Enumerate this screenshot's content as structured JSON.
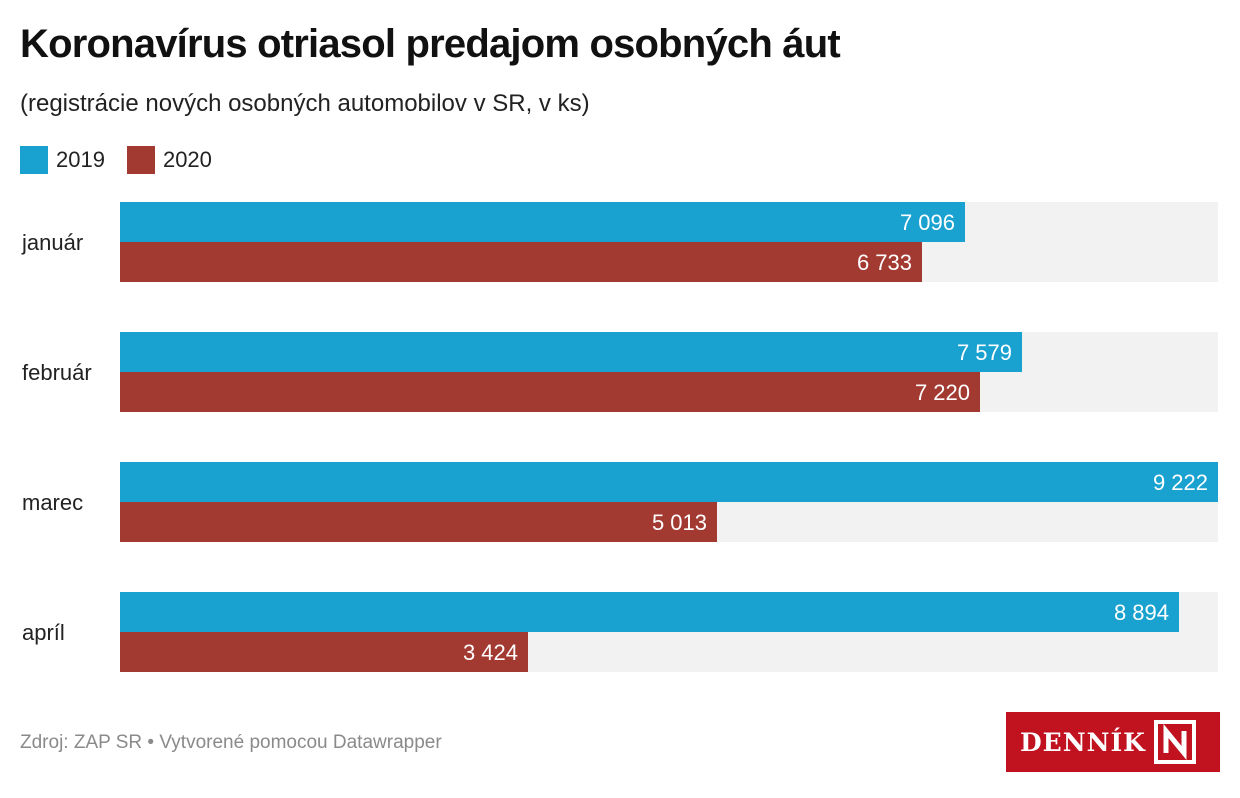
{
  "header": {
    "title": "Koronavírus otriasol predajom osobných áut",
    "subtitle": "(registrácie nových osobných automobilov v SR, v ks)"
  },
  "legend": [
    {
      "label": "2019",
      "color": "#19a1d0"
    },
    {
      "label": "2020",
      "color": "#a33a32"
    }
  ],
  "chart_data": {
    "type": "bar",
    "orientation": "horizontal",
    "title": "Koronavírus otriasol predajom osobných áut",
    "subtitle": "(registrácie nových osobných automobilov v SR, v ks)",
    "categories": [
      "január",
      "február",
      "marec",
      "apríl"
    ],
    "series": [
      {
        "name": "2019",
        "color": "#19a1d0",
        "values": [
          7096,
          7579,
          9222,
          8894
        ],
        "labels": [
          "7 096",
          "7 579",
          "9 222",
          "8 894"
        ]
      },
      {
        "name": "2020",
        "color": "#a33a32",
        "values": [
          6733,
          7220,
          5013,
          3424
        ],
        "labels": [
          "6 733",
          "7 220",
          "5 013",
          "3 424"
        ]
      }
    ],
    "xlim": [
      0,
      9222
    ],
    "background_track_color": "#f2f2f2",
    "legend_position": "top-left"
  },
  "footer": {
    "source": "Zdroj: ZAP SR • Vytvorené pomocou Datawrapper"
  },
  "logo": {
    "text": "DENNÍK",
    "mark_icon": "dennik-n-logo-icon",
    "color": "#c1121f"
  }
}
